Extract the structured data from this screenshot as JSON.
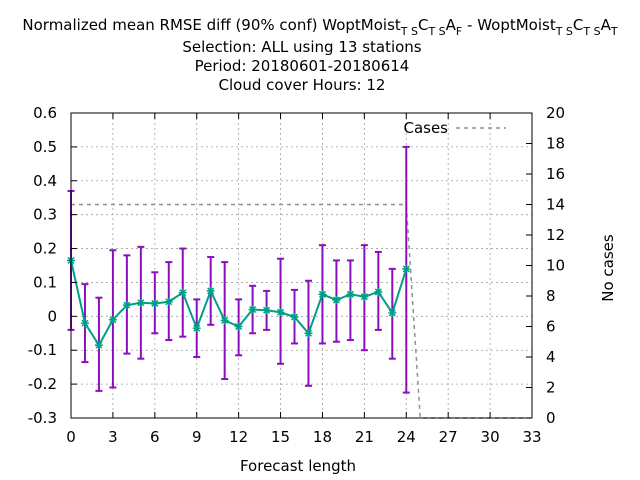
{
  "chart_data": {
    "type": "line",
    "title_lines": [
      "Normalized mean RMSE diff (90% conf) WoptMoist_TS C_TS A_F - WoptMoist_TS C_TS A_T",
      "Selection: ALL using    13 stations",
      "Period: 20180601-20180614",
      "Cloud cover   Hours:  12"
    ],
    "title_parts": [
      {
        "t": "Normalized mean RMSE diff (90% conf) WoptMoist",
        "sub": false
      },
      {
        "t": "T S",
        "sub": true
      },
      {
        "t": "C",
        "sub": false
      },
      {
        "t": "T S",
        "sub": true
      },
      {
        "t": "A",
        "sub": false
      },
      {
        "t": "F",
        "sub": true
      },
      {
        "t": " - WoptMoist",
        "sub": false
      },
      {
        "t": "T S",
        "sub": true
      },
      {
        "t": "C",
        "sub": false
      },
      {
        "t": "T S",
        "sub": true
      },
      {
        "t": "A",
        "sub": false
      },
      {
        "t": "T",
        "sub": true
      }
    ],
    "xlabel": "Forecast length",
    "ylabel": "",
    "y2label": "No cases",
    "xlim": [
      0,
      33
    ],
    "ylim": [
      -0.3,
      0.6
    ],
    "y2lim": [
      0,
      20
    ],
    "x_ticks": [
      "0",
      "3",
      "6",
      "9",
      "12",
      "15",
      "18",
      "21",
      "24",
      "27",
      "30",
      "33"
    ],
    "y_ticks": [
      "-0.3",
      "-0.2",
      "-0.1",
      "0",
      "0.1",
      "0.2",
      "0.3",
      "0.4",
      "0.5",
      "0.6"
    ],
    "y2_ticks": [
      "0",
      "2",
      "4",
      "6",
      "8",
      "10",
      "12",
      "14",
      "16",
      "18",
      "20"
    ],
    "grid": true,
    "legend_position": "top-right",
    "series": [
      {
        "name": "",
        "color": "#009e86",
        "errorbar_color": "#8c0fbf",
        "x": [
          0,
          1,
          2,
          3,
          4,
          5,
          6,
          7,
          8,
          9,
          10,
          11,
          12,
          13,
          14,
          15,
          16,
          17,
          18,
          19,
          20,
          21,
          22,
          23,
          24
        ],
        "y": [
          0.165,
          -0.02,
          -0.085,
          -0.01,
          0.033,
          0.04,
          0.038,
          0.043,
          0.07,
          -0.035,
          0.075,
          -0.012,
          -0.03,
          0.02,
          0.018,
          0.012,
          -0.002,
          -0.05,
          0.065,
          0.048,
          0.065,
          0.058,
          0.072,
          0.01,
          0.14
        ],
        "err_low": [
          -0.04,
          -0.135,
          -0.22,
          -0.21,
          -0.11,
          -0.125,
          -0.05,
          -0.07,
          -0.06,
          -0.12,
          -0.025,
          -0.185,
          -0.115,
          -0.05,
          -0.04,
          -0.14,
          -0.08,
          -0.205,
          -0.08,
          -0.075,
          -0.07,
          -0.1,
          -0.04,
          -0.125,
          -0.225
        ],
        "err_high": [
          0.37,
          0.095,
          0.055,
          0.195,
          0.18,
          0.205,
          0.13,
          0.16,
          0.2,
          0.05,
          0.175,
          0.16,
          0.05,
          0.09,
          0.075,
          0.17,
          0.078,
          0.105,
          0.21,
          0.165,
          0.165,
          0.21,
          0.19,
          0.14,
          0.5
        ]
      },
      {
        "name": "Cases",
        "axis": "y2",
        "color": "#909090",
        "style": "dashed",
        "x": [
          0,
          24,
          25,
          33
        ],
        "y": [
          14,
          14,
          0,
          0
        ]
      }
    ]
  }
}
